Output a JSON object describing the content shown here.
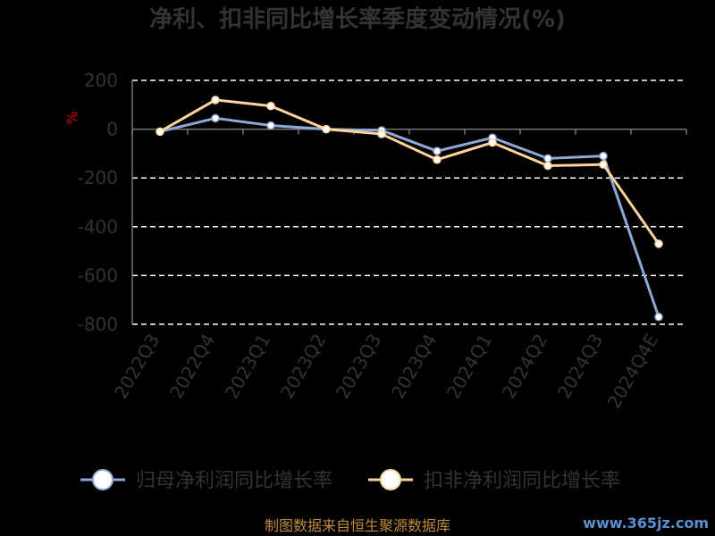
{
  "title": "净利、扣非同比增长率季度变动情况(%)",
  "y_unit": "%",
  "source": "制图数据来自恒生聚源数据库",
  "watermark": "www.365jz.com",
  "colors": {
    "background": "#000000",
    "grid": "#ffffff",
    "axis": "#777777",
    "text": "#333333",
    "series_1": "#8ea9d8",
    "series_2": "#ffd39a"
  },
  "chart_data": {
    "type": "line",
    "categories": [
      "2022Q3",
      "2022Q4",
      "2023Q1",
      "2023Q2",
      "2023Q3",
      "2023Q4",
      "2024Q1",
      "2024Q2",
      "2024Q3",
      "2024Q4E"
    ],
    "yticks": [
      200,
      0,
      -200,
      -400,
      -600,
      -800
    ],
    "ylim": [
      -800,
      200
    ],
    "grid": true,
    "legend": "bottom",
    "series": [
      {
        "name": "归母净利润同比增长率",
        "values": [
          -10,
          45,
          15,
          0,
          -5,
          -90,
          -35,
          -120,
          -110,
          -770
        ]
      },
      {
        "name": "扣非净利润同比增长率",
        "values": [
          -10,
          120,
          95,
          0,
          -20,
          -125,
          -55,
          -150,
          -145,
          -470
        ]
      }
    ]
  }
}
